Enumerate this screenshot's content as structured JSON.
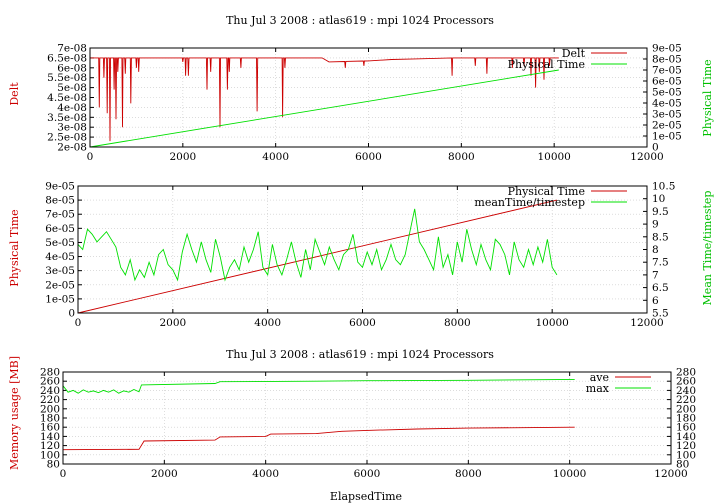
{
  "colors": {
    "red": "#cc0000",
    "green": "#00e000",
    "black": "#000000"
  },
  "chart_data": [
    {
      "type": "line",
      "title": "Thu Jul 3 2008 : atlas619 : mpi 1024 Processors",
      "xlabel": "",
      "ylabel_left": "Delt",
      "ylabel_right": "Physical Time",
      "xlim": [
        0,
        12000
      ],
      "ylim_left": [
        2e-08,
        7e-08
      ],
      "ylim_right": [
        0,
        9e-05
      ],
      "xticks": [
        "0",
        "2000",
        "4000",
        "6000",
        "8000",
        "10000",
        "12000"
      ],
      "yticks_left": [
        "2e-08",
        "2.5e-08",
        "3e-08",
        "3.5e-08",
        "4e-08",
        "4.5e-08",
        "5e-08",
        "5.5e-08",
        "6e-08",
        "6.5e-08",
        "7e-08"
      ],
      "yticks_right": [
        "0",
        "1e-05",
        "2e-05",
        "3e-05",
        "4e-05",
        "5e-05",
        "6e-05",
        "7e-05",
        "8e-05",
        "9e-05"
      ],
      "grid": true,
      "legend_position": "top-right",
      "series": [
        {
          "name": "Delt",
          "axis": "left",
          "color": "red",
          "baseline_segments": [
            [
              0,
              6.5e-08
            ],
            [
              5000,
              6.5e-08
            ],
            [
              5150,
              6.3e-08
            ],
            [
              6000,
              6.35e-08
            ],
            [
              6500,
              6.42e-08
            ],
            [
              7000,
              6.45e-08
            ],
            [
              7800,
              6.5e-08
            ],
            [
              10100,
              6.5e-08
            ]
          ],
          "dips": [
            [
              200,
              4e-08
            ],
            [
              300,
              5.5e-08
            ],
            [
              370,
              3.7e-08
            ],
            [
              430,
              2.3e-08
            ],
            [
              520,
              4.9e-08
            ],
            [
              560,
              3.4e-08
            ],
            [
              600,
              5.8e-08
            ],
            [
              700,
              3e-08
            ],
            [
              760,
              5.7e-08
            ],
            [
              880,
              4.2e-08
            ],
            [
              1000,
              6e-08
            ],
            [
              1050,
              5.8e-08
            ],
            [
              2000,
              6.3e-08
            ],
            [
              2060,
              5.6e-08
            ],
            [
              2120,
              5.6e-08
            ],
            [
              2520,
              4.9e-08
            ],
            [
              2600,
              5.8e-08
            ],
            [
              2800,
              3e-08
            ],
            [
              2960,
              4.9e-08
            ],
            [
              3000,
              5.8e-08
            ],
            [
              3250,
              6e-08
            ],
            [
              3600,
              3.8e-08
            ],
            [
              4150,
              3.5e-08
            ],
            [
              4200,
              6e-08
            ],
            [
              5500,
              6e-08
            ],
            [
              5900,
              6.1e-08
            ],
            [
              7800,
              5.6e-08
            ],
            [
              8300,
              6.1e-08
            ],
            [
              8550,
              5.7e-08
            ],
            [
              9100,
              6e-08
            ],
            [
              9350,
              6.1e-08
            ],
            [
              9500,
              5.6e-08
            ],
            [
              9600,
              5e-08
            ],
            [
              9680,
              5.8e-08
            ],
            [
              9780,
              5.4e-08
            ],
            [
              9900,
              6.1e-08
            ]
          ]
        },
        {
          "name": "Physical Time",
          "axis": "right",
          "color": "green",
          "x": [
            0,
            10100
          ],
          "y": [
            0,
            7e-05
          ]
        }
      ]
    },
    {
      "type": "line",
      "title": "",
      "xlabel": "",
      "ylabel_left": "Physical Time",
      "ylabel_right": "Mean Time/timestep",
      "xlim": [
        0,
        12000
      ],
      "ylim_left": [
        0,
        9e-05
      ],
      "ylim_right": [
        5.5,
        10.5
      ],
      "xticks": [
        "0",
        "2000",
        "4000",
        "6000",
        "8000",
        "10000",
        "12000"
      ],
      "yticks_left": [
        "0",
        "1e-05",
        "2e-05",
        "3e-05",
        "4e-05",
        "5e-05",
        "6e-05",
        "7e-05",
        "8e-05",
        "9e-05"
      ],
      "yticks_right": [
        "5.5",
        "6",
        "6.5",
        "7",
        "7.5",
        "8",
        "8.5",
        "9",
        "9.5",
        "10",
        "10.5"
      ],
      "grid": true,
      "legend_position": "top-right",
      "series": [
        {
          "name": "Physical Time",
          "axis": "left",
          "color": "red",
          "x": [
            0,
            10100
          ],
          "y": [
            0,
            8e-05
          ]
        },
        {
          "name": "meanTime/timestep",
          "axis": "right",
          "color": "green",
          "x": [
            0,
            100,
            200,
            300,
            400,
            500,
            600,
            700,
            800,
            900,
            1000,
            1100,
            1200,
            1300,
            1400,
            1500,
            1600,
            1700,
            1800,
            1900,
            2000,
            2100,
            2200,
            2300,
            2400,
            2500,
            2600,
            2700,
            2800,
            2900,
            3000,
            3100,
            3200,
            3300,
            3400,
            3500,
            3600,
            3700,
            3800,
            3900,
            4000,
            4100,
            4200,
            4300,
            4400,
            4500,
            4600,
            4700,
            4800,
            4900,
            5000,
            5100,
            5200,
            5300,
            5400,
            5500,
            5600,
            5700,
            5800,
            5900,
            6000,
            6100,
            6200,
            6300,
            6400,
            6500,
            6600,
            6700,
            6800,
            6900,
            7000,
            7100,
            7200,
            7300,
            7400,
            7500,
            7600,
            7700,
            7800,
            7900,
            8000,
            8100,
            8200,
            8300,
            8400,
            8500,
            8600,
            8700,
            8800,
            8900,
            9000,
            9100,
            9200,
            9300,
            9400,
            9500,
            9600,
            9700,
            9800,
            9900,
            10000,
            10100
          ],
          "y": [
            8.2,
            8.0,
            8.8,
            8.6,
            8.3,
            8.5,
            8.7,
            8.4,
            8.1,
            7.3,
            7.0,
            7.6,
            6.8,
            7.2,
            6.9,
            7.5,
            7.0,
            7.8,
            8.0,
            7.4,
            7.2,
            6.8,
            7.9,
            8.6,
            8.0,
            7.5,
            8.3,
            7.6,
            7.1,
            8.4,
            7.7,
            6.8,
            7.3,
            7.6,
            7.2,
            8.1,
            7.5,
            8.0,
            8.7,
            7.3,
            7.0,
            8.2,
            7.4,
            7.0,
            7.6,
            8.3,
            7.5,
            6.9,
            8.0,
            7.2,
            8.4,
            7.9,
            7.4,
            8.1,
            7.6,
            7.2,
            7.8,
            8.0,
            8.6,
            7.5,
            7.3,
            7.9,
            7.4,
            8.0,
            7.2,
            7.6,
            8.2,
            7.6,
            7.4,
            7.8,
            8.7,
            9.6,
            8.3,
            8.0,
            7.6,
            7.2,
            8.5,
            7.3,
            7.8,
            7.0,
            8.3,
            7.5,
            8.8,
            8.0,
            7.4,
            8.2,
            7.6,
            7.2,
            8.4,
            8.2,
            7.8,
            7.0,
            8.3,
            7.6,
            7.3,
            8.0,
            7.4,
            8.1,
            7.5,
            8.4,
            7.3,
            7.0
          ]
        }
      ]
    },
    {
      "type": "line",
      "title": "Thu Jul 3 2008 : atlas619 : mpi 1024 Processors",
      "xlabel": "ElapsedTime",
      "ylabel_left": "Memory usage [MB]",
      "ylabel_right": "",
      "xlim": [
        0,
        12000
      ],
      "ylim": [
        80,
        280
      ],
      "xticks": [
        "0",
        "2000",
        "4000",
        "6000",
        "8000",
        "10000",
        "12000"
      ],
      "yticks_left": [
        "80",
        "100",
        "120",
        "140",
        "160",
        "180",
        "200",
        "220",
        "240",
        "260",
        "280"
      ],
      "yticks_right": [
        "80",
        "100",
        "120",
        "140",
        "160",
        "180",
        "200",
        "220",
        "240",
        "260",
        "280"
      ],
      "grid": true,
      "legend_position": "top-right",
      "series": [
        {
          "name": "ave",
          "color": "red",
          "x": [
            0,
            1500,
            1600,
            3000,
            3100,
            4000,
            4100,
            5000,
            5500,
            6000,
            7000,
            8000,
            10100
          ],
          "y": [
            111,
            112,
            130,
            132,
            139,
            140,
            145,
            146,
            151,
            153,
            156,
            158,
            160
          ]
        },
        {
          "name": "max",
          "color": "green",
          "x": [
            0,
            100,
            200,
            300,
            400,
            500,
            600,
            700,
            800,
            900,
            1000,
            1100,
            1200,
            1300,
            1400,
            1500,
            1550,
            3000,
            3100,
            5000,
            6000,
            8000,
            10100
          ],
          "y": [
            250,
            236,
            240,
            234,
            241,
            236,
            239,
            235,
            240,
            236,
            241,
            234,
            239,
            236,
            242,
            237,
            252,
            255,
            259,
            260,
            261,
            262,
            264
          ]
        }
      ]
    }
  ]
}
